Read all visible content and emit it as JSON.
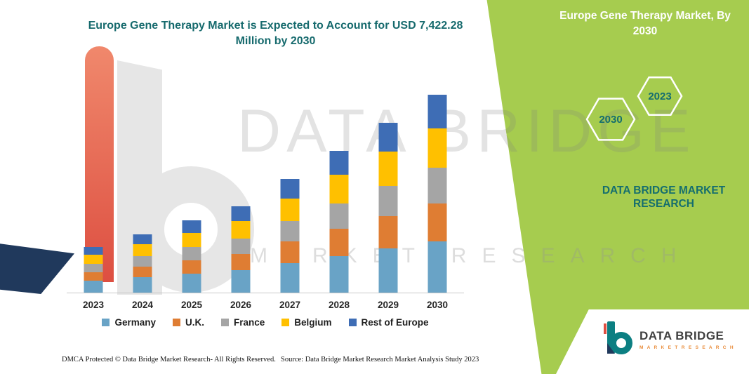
{
  "page": {
    "accent_green": "#A6CC4F",
    "accent_teal": "#166A6D"
  },
  "main_chart": {
    "title": "Europe Gene Therapy Market is Expected to Account for USD 7,422.28 Million by 2030"
  },
  "side_panel": {
    "title": "Europe Gene Therapy Market, By 2030",
    "hexagon_left": "2030",
    "hexagon_right": "2023",
    "brand_caption": "DATA BRIDGE MARKET RESEARCH"
  },
  "watermark": {
    "line1": "DATA BRIDGE",
    "line2": "MARKET  RESEARCH"
  },
  "footer": {
    "dmca": "DMCA Protected © Data Bridge Market Research-  All Rights Reserved.",
    "source": "Source: Data Bridge Market Research  Market Analysis Study 2023"
  },
  "logo": {
    "name": "DATA BRIDGE",
    "subtitle": "M A R K E T   R E S E A R C H"
  },
  "chart_data": {
    "type": "bar",
    "stacked": true,
    "title": "Europe Gene Therapy Market is Expected to Account for USD 7,422.28 Million by 2030",
    "unit": "USD Million",
    "categories": [
      "2023",
      "2024",
      "2025",
      "2026",
      "2027",
      "2028",
      "2029",
      "2030"
    ],
    "series": [
      {
        "name": "Germany",
        "color": "#69A3C6",
        "values": [
          444.7,
          568.0,
          704.9,
          841.8,
          1108.7,
          1382.4,
          1656.1,
          1929.8
        ]
      },
      {
        "name": "U.K.",
        "color": "#DF7D33",
        "values": [
          325.0,
          415.1,
          515.1,
          615.2,
          810.2,
          1010.2,
          1210.2,
          1410.2
        ]
      },
      {
        "name": "France",
        "color": "#A5A5A5",
        "values": [
          307.9,
          393.2,
          488.0,
          582.8,
          767.5,
          957.0,
          1146.5,
          1336.0
        ]
      },
      {
        "name": "Belgium",
        "color": "#FFC000",
        "values": [
          342.1,
          436.9,
          542.2,
          647.6,
          852.8,
          1063.4,
          1273.9,
          1484.5
        ]
      },
      {
        "name": "Rest of Europe",
        "color": "#3E6DB5",
        "values": [
          290.8,
          371.4,
          460.9,
          550.4,
          724.9,
          903.9,
          1082.8,
          1261.8
        ]
      }
    ],
    "totals": [
      1710.5,
      2184.6,
      2711.2,
      3237.8,
      4264.1,
      5316.9,
      6369.7,
      7422.28
    ],
    "labeled_value": "USD 7,422.28 Million by 2030",
    "ylim": [
      0,
      7500
    ],
    "y_axis_visible": false,
    "gridlines": false,
    "legend_position": "bottom"
  }
}
